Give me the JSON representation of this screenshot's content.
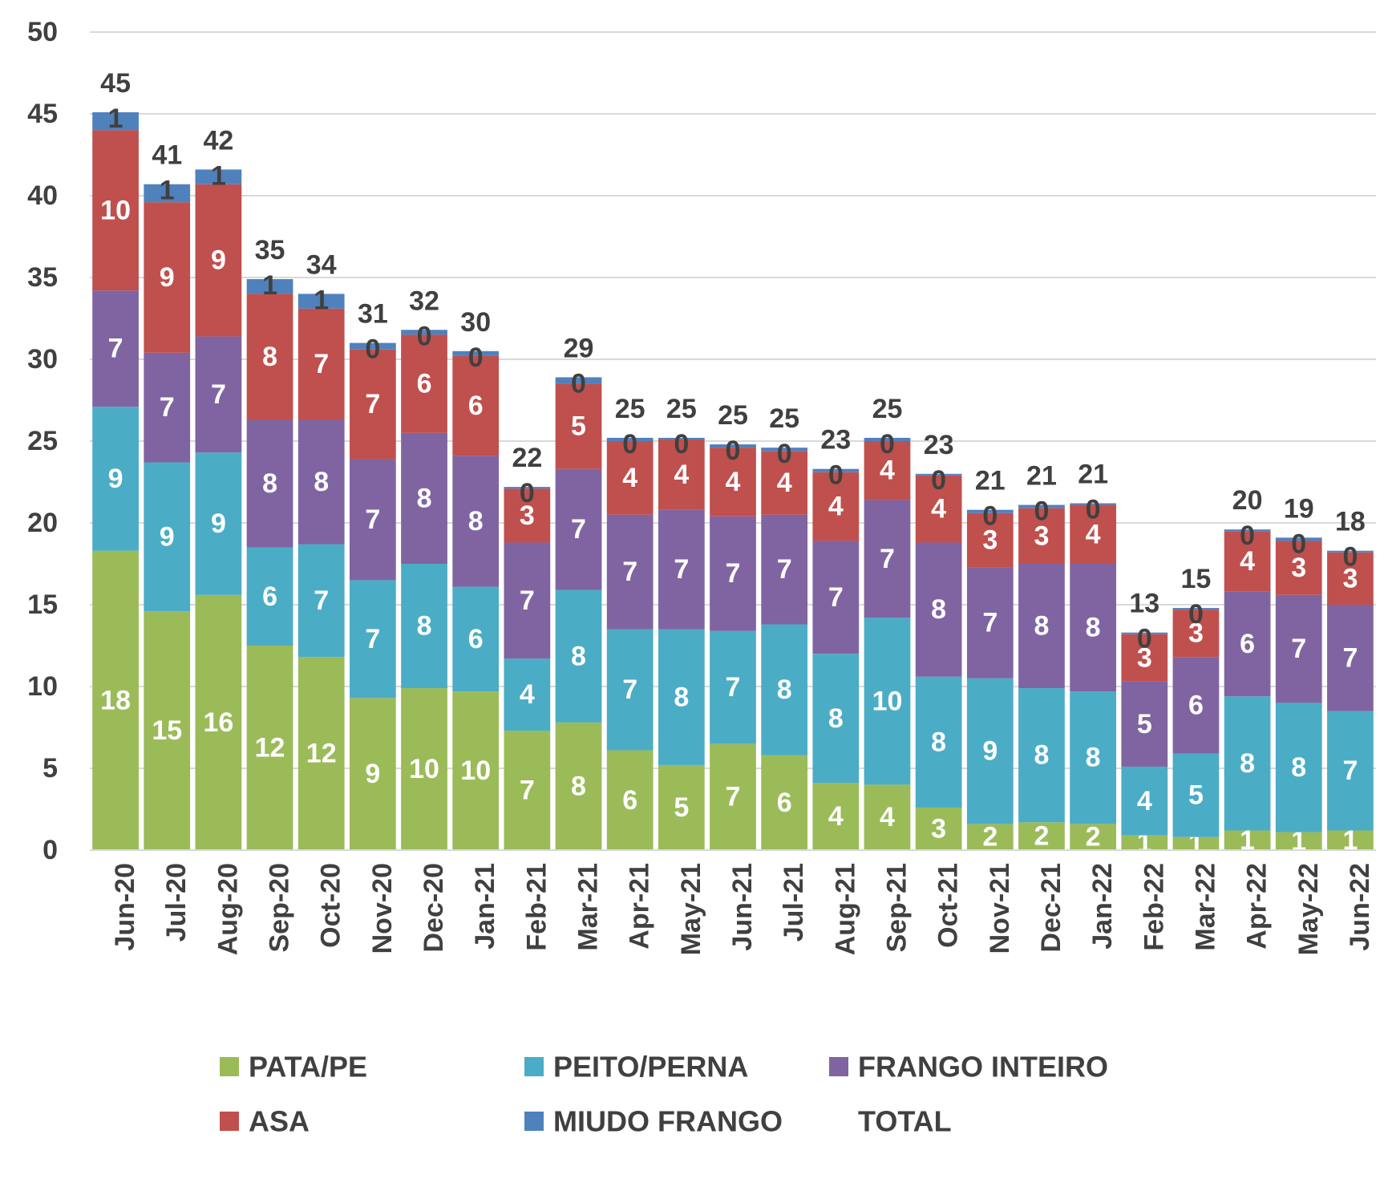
{
  "chart_data": {
    "type": "stacked-bar",
    "categories": [
      "Jun-20",
      "Jul-20",
      "Aug-20",
      "Sep-20",
      "Oct-20",
      "Nov-20",
      "Dec-20",
      "Jan-21",
      "Feb-21",
      "Mar-21",
      "Apr-21",
      "May-21",
      "Jun-21",
      "Jul-21",
      "Aug-21",
      "Sep-21",
      "Oct-21",
      "Nov-21",
      "Dec-21",
      "Jan-22",
      "Feb-22",
      "Mar-22",
      "Apr-22",
      "May-22",
      "Jun-22"
    ],
    "series": [
      {
        "name": "PATA/PE",
        "color": "#9bbb59",
        "values": [
          18.3,
          14.6,
          15.6,
          12.5,
          11.8,
          9.3,
          9.9,
          9.7,
          7.3,
          7.8,
          6.1,
          5.2,
          6.5,
          5.8,
          4.1,
          4.0,
          2.6,
          1.6,
          1.7,
          1.6,
          0.9,
          0.8,
          1.2,
          1.1,
          1.2
        ],
        "value_labels": [
          "18",
          "15",
          "16",
          "12",
          "12",
          "9",
          "10",
          "10",
          "7",
          "8",
          "6",
          "5",
          "7",
          "6",
          "4",
          "4",
          "3",
          "2",
          "2",
          "2",
          "1",
          "1",
          "1",
          "1",
          "1"
        ]
      },
      {
        "name": "PEITO/PERNA",
        "color": "#4bacc6",
        "values": [
          8.8,
          9.1,
          8.7,
          6.0,
          6.9,
          7.2,
          7.6,
          6.4,
          4.4,
          8.1,
          7.4,
          8.3,
          6.9,
          8.0,
          7.9,
          10.2,
          8.0,
          8.9,
          8.2,
          8.1,
          4.2,
          5.1,
          8.2,
          7.9,
          7.3
        ],
        "value_labels": [
          "9",
          "9",
          "9",
          "6",
          "7",
          "7",
          "8",
          "6",
          "4",
          "8",
          "7",
          "8",
          "7",
          "8",
          "8",
          "10",
          "8",
          "9",
          "8",
          "8",
          "4",
          "5",
          "8",
          "8",
          "7"
        ]
      },
      {
        "name": "FRANGO INTEIRO",
        "color": "#8064a2",
        "values": [
          7.1,
          6.7,
          7.1,
          7.8,
          7.6,
          7.4,
          8.0,
          8.0,
          7.1,
          7.4,
          7.0,
          7.3,
          7.0,
          6.7,
          6.9,
          7.2,
          8.2,
          6.8,
          7.6,
          7.8,
          5.2,
          5.9,
          6.4,
          6.6,
          6.5
        ],
        "value_labels": [
          "7",
          "7",
          "7",
          "8",
          "8",
          "7",
          "8",
          "8",
          "7",
          "7",
          "7",
          "7",
          "7",
          "7",
          "7",
          "7",
          "8",
          "7",
          "8",
          "8",
          "5",
          "6",
          "6",
          "7",
          "7"
        ]
      },
      {
        "name": "ASA",
        "color": "#c0504d",
        "values": [
          9.8,
          9.2,
          9.3,
          7.7,
          6.8,
          6.7,
          6.0,
          6.1,
          3.3,
          5.2,
          4.5,
          4.3,
          4.2,
          3.9,
          4.2,
          3.6,
          4.1,
          3.3,
          3.4,
          3.6,
          2.9,
          2.9,
          3.7,
          3.3,
          3.2
        ],
        "value_labels": [
          "10",
          "9",
          "9",
          "8",
          "7",
          "7",
          "6",
          "6",
          "3",
          "5",
          "4",
          "4",
          "4",
          "4",
          "4",
          "4",
          "4",
          "3",
          "3",
          "4",
          "3",
          "3",
          "4",
          "3",
          "3"
        ]
      },
      {
        "name": "MIUDO FRANGO",
        "color": "#4f81bd",
        "values": [
          1.1,
          1.1,
          0.9,
          0.9,
          0.9,
          0.4,
          0.3,
          0.3,
          0.1,
          0.4,
          0.2,
          0.1,
          0.2,
          0.2,
          0.2,
          0.2,
          0.1,
          0.2,
          0.2,
          0.1,
          0.1,
          0.1,
          0.1,
          0.2,
          0.1
        ],
        "value_labels": [
          "1",
          "1",
          "1",
          "1",
          "1",
          "0",
          "0",
          "0",
          "0",
          "0",
          "0",
          "0",
          "0",
          "0",
          "0",
          "0",
          "0",
          "0",
          "0",
          "0",
          "0",
          "0",
          "0",
          "0",
          "0"
        ]
      },
      {
        "name": "TOTAL",
        "values": [
          45,
          41,
          42,
          35,
          34,
          31,
          32,
          30,
          22,
          29,
          25,
          25,
          25,
          25,
          23,
          25,
          23,
          21,
          21,
          21,
          13,
          15,
          20,
          19,
          18
        ]
      }
    ],
    "ylim": [
      0,
      50
    ],
    "yticks": [
      0,
      5,
      10,
      15,
      20,
      25,
      30,
      35,
      40,
      45,
      50
    ],
    "grid": true
  }
}
